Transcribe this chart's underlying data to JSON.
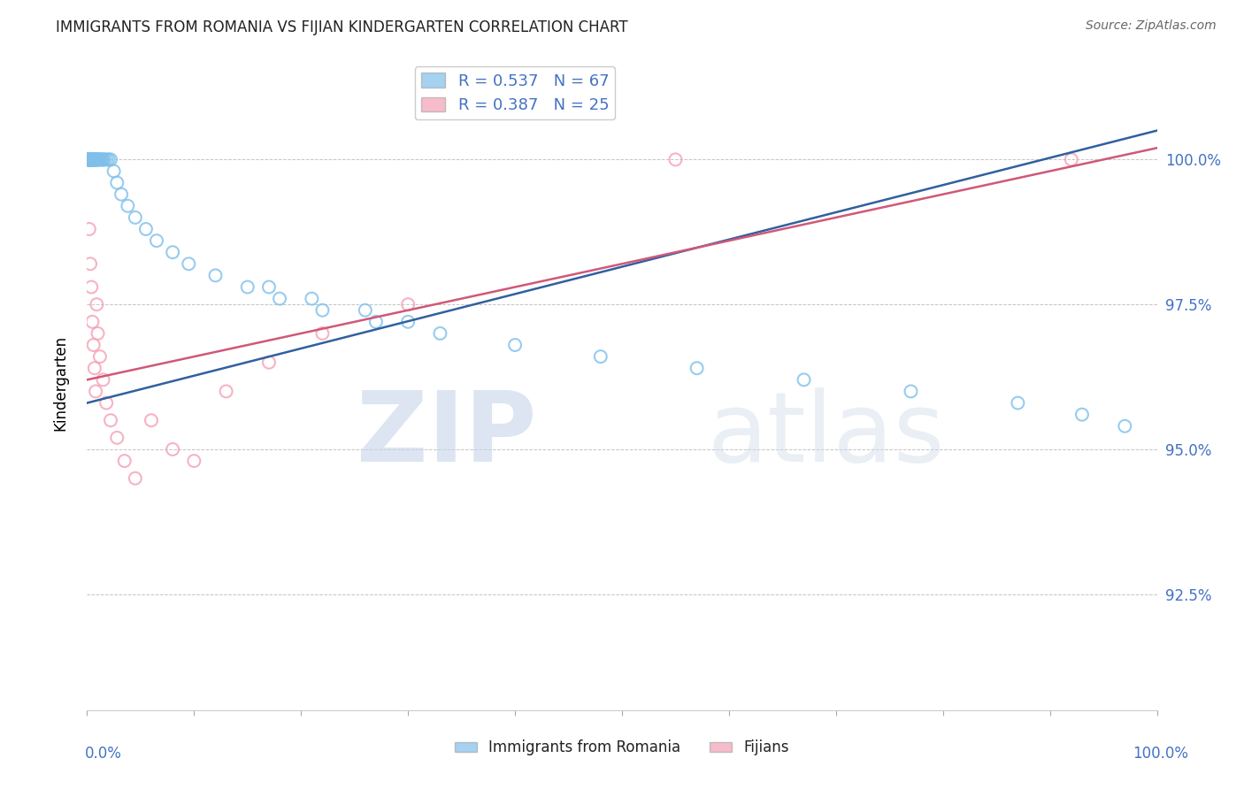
{
  "title": "IMMIGRANTS FROM ROMANIA VS FIJIAN KINDERGARTEN CORRELATION CHART",
  "source": "Source: ZipAtlas.com",
  "ylabel": "Kindergarten",
  "ytick_labels": [
    "100.0%",
    "97.5%",
    "95.0%",
    "92.5%"
  ],
  "ytick_values": [
    1.0,
    0.975,
    0.95,
    0.925
  ],
  "xlim": [
    0.0,
    1.0
  ],
  "ylim": [
    0.905,
    1.018
  ],
  "legend_label_blue": "R = 0.537   N = 67",
  "legend_label_pink": "R = 0.387   N = 25",
  "legend_labels_bottom": [
    "Immigrants from Romania",
    "Fijians"
  ],
  "blue_color": "#7fbfea",
  "pink_color": "#f4a0b5",
  "blue_line_color": "#3060a0",
  "pink_line_color": "#d05878",
  "watermark_zip": "ZIP",
  "watermark_atlas": "atlas",
  "blue_scatter_x": [
    0.001,
    0.001,
    0.001,
    0.002,
    0.002,
    0.002,
    0.002,
    0.003,
    0.003,
    0.003,
    0.003,
    0.003,
    0.004,
    0.004,
    0.004,
    0.004,
    0.005,
    0.005,
    0.005,
    0.005,
    0.006,
    0.006,
    0.006,
    0.007,
    0.007,
    0.008,
    0.008,
    0.009,
    0.009,
    0.01,
    0.01,
    0.011,
    0.012,
    0.013,
    0.014,
    0.015,
    0.016,
    0.018,
    0.02,
    0.022,
    0.025,
    0.028,
    0.032,
    0.038,
    0.045,
    0.055,
    0.065,
    0.08,
    0.095,
    0.12,
    0.15,
    0.18,
    0.22,
    0.27,
    0.33,
    0.4,
    0.48,
    0.57,
    0.67,
    0.77,
    0.87,
    0.93,
    0.97,
    0.17,
    0.21,
    0.26,
    0.3
  ],
  "blue_scatter_y": [
    1.0,
    1.0,
    1.0,
    1.0,
    1.0,
    1.0,
    1.0,
    1.0,
    1.0,
    1.0,
    1.0,
    1.0,
    1.0,
    1.0,
    1.0,
    1.0,
    1.0,
    1.0,
    1.0,
    1.0,
    1.0,
    1.0,
    1.0,
    1.0,
    1.0,
    1.0,
    1.0,
    1.0,
    1.0,
    1.0,
    1.0,
    1.0,
    1.0,
    1.0,
    1.0,
    1.0,
    1.0,
    1.0,
    1.0,
    1.0,
    0.998,
    0.996,
    0.994,
    0.992,
    0.99,
    0.988,
    0.986,
    0.984,
    0.982,
    0.98,
    0.978,
    0.976,
    0.974,
    0.972,
    0.97,
    0.968,
    0.966,
    0.964,
    0.962,
    0.96,
    0.958,
    0.956,
    0.954,
    0.978,
    0.976,
    0.974,
    0.972
  ],
  "pink_scatter_x": [
    0.002,
    0.003,
    0.004,
    0.005,
    0.006,
    0.007,
    0.008,
    0.009,
    0.01,
    0.012,
    0.015,
    0.018,
    0.022,
    0.028,
    0.035,
    0.045,
    0.06,
    0.08,
    0.1,
    0.13,
    0.17,
    0.22,
    0.3,
    0.55,
    0.92
  ],
  "pink_scatter_y": [
    0.988,
    0.982,
    0.978,
    0.972,
    0.968,
    0.964,
    0.96,
    0.975,
    0.97,
    0.966,
    0.962,
    0.958,
    0.955,
    0.952,
    0.948,
    0.945,
    0.955,
    0.95,
    0.948,
    0.96,
    0.965,
    0.97,
    0.975,
    1.0,
    1.0
  ],
  "blue_trendline_x": [
    0.0,
    1.0
  ],
  "blue_trendline_y": [
    0.958,
    1.005
  ],
  "pink_trendline_x": [
    0.0,
    1.0
  ],
  "pink_trendline_y": [
    0.962,
    1.002
  ]
}
